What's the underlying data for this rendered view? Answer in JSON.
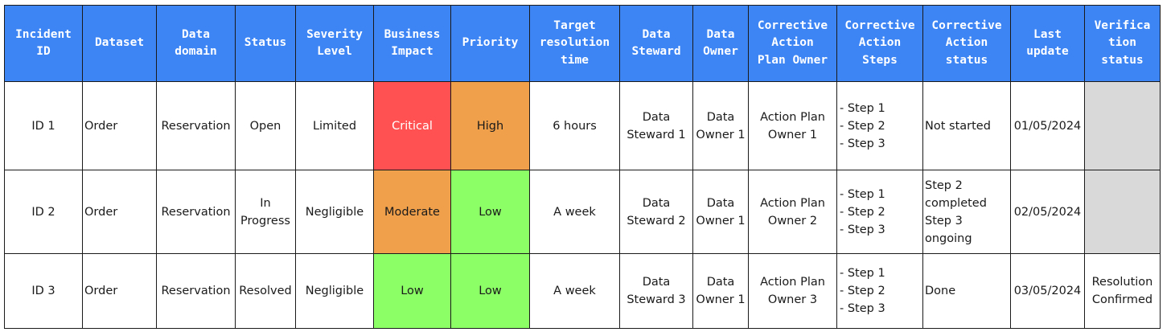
{
  "headers": [
    [
      "Incident",
      "ID"
    ],
    [
      "Dataset"
    ],
    [
      "Data",
      "domain"
    ],
    [
      "Status"
    ],
    [
      "Severity",
      "Level"
    ],
    [
      "Business",
      "Impact"
    ],
    [
      "Priority"
    ],
    [
      "Target",
      "resolution",
      "time"
    ],
    [
      "Data",
      "Steward"
    ],
    [
      "Data",
      "Owner"
    ],
    [
      "Corrective",
      "Action",
      "Plan Owner"
    ],
    [
      "Corrective",
      "Action",
      "Steps"
    ],
    [
      "Corrective",
      "Action",
      "status"
    ],
    [
      "Last",
      "update"
    ],
    [
      "Verifica",
      "tion",
      "status"
    ]
  ],
  "rows": [
    {
      "incident_id": "ID 1",
      "dataset": "Order",
      "data_domain": "Reservation",
      "status": [
        "Open"
      ],
      "severity": "Limited",
      "business_impact": "Critical",
      "priority": "High",
      "target_time": "6 hours",
      "data_steward": [
        "Data",
        "Steward 1"
      ],
      "data_owner": [
        "Data",
        "Owner 1"
      ],
      "plan_owner": [
        "Action Plan",
        "Owner 1"
      ],
      "steps": [
        "- Step 1",
        "- Step 2",
        "- Step 3"
      ],
      "action_status": [
        "Not started"
      ],
      "last_update": "01/05/2024",
      "verification": [
        "",
        ""
      ]
    },
    {
      "incident_id": "ID 2",
      "dataset": "Order",
      "data_domain": "Reservation",
      "status": [
        "In",
        "Progress"
      ],
      "severity": "Negligible",
      "business_impact": "Moderate",
      "priority": "Low",
      "target_time": "A week",
      "data_steward": [
        "Data",
        "Steward 2"
      ],
      "data_owner": [
        "Data",
        "Owner 1"
      ],
      "plan_owner": [
        "Action Plan",
        "Owner 2"
      ],
      "steps": [
        "- Step 1",
        "- Step 2",
        "- Step 3"
      ],
      "action_status": [
        "Step 2",
        "completed",
        "Step 3 ongoing"
      ],
      "last_update": "02/05/2024",
      "verification": [
        "",
        ""
      ]
    },
    {
      "incident_id": "ID 3",
      "dataset": "Order",
      "data_domain": "Reservation",
      "status": [
        "Resolved"
      ],
      "severity": "Negligible",
      "business_impact": "Low",
      "priority": "Low",
      "target_time": "A week",
      "data_steward": [
        "Data",
        "Steward 3"
      ],
      "data_owner": [
        "Data",
        "Owner 1"
      ],
      "plan_owner": [
        "Action Plan",
        "Owner 3"
      ],
      "steps": [
        "- Step 1",
        "- Step 2",
        "- Step 3"
      ],
      "action_status": [
        "Done"
      ],
      "last_update": "03/05/2024",
      "verification": [
        "Resolution",
        "Confirmed"
      ]
    }
  ],
  "colors": {
    "header_bg": "#3d85f5",
    "critical": "#ff5151",
    "high_moderate": "#f0a04b",
    "low": "#8cff66",
    "empty": "#d9d9d9"
  }
}
